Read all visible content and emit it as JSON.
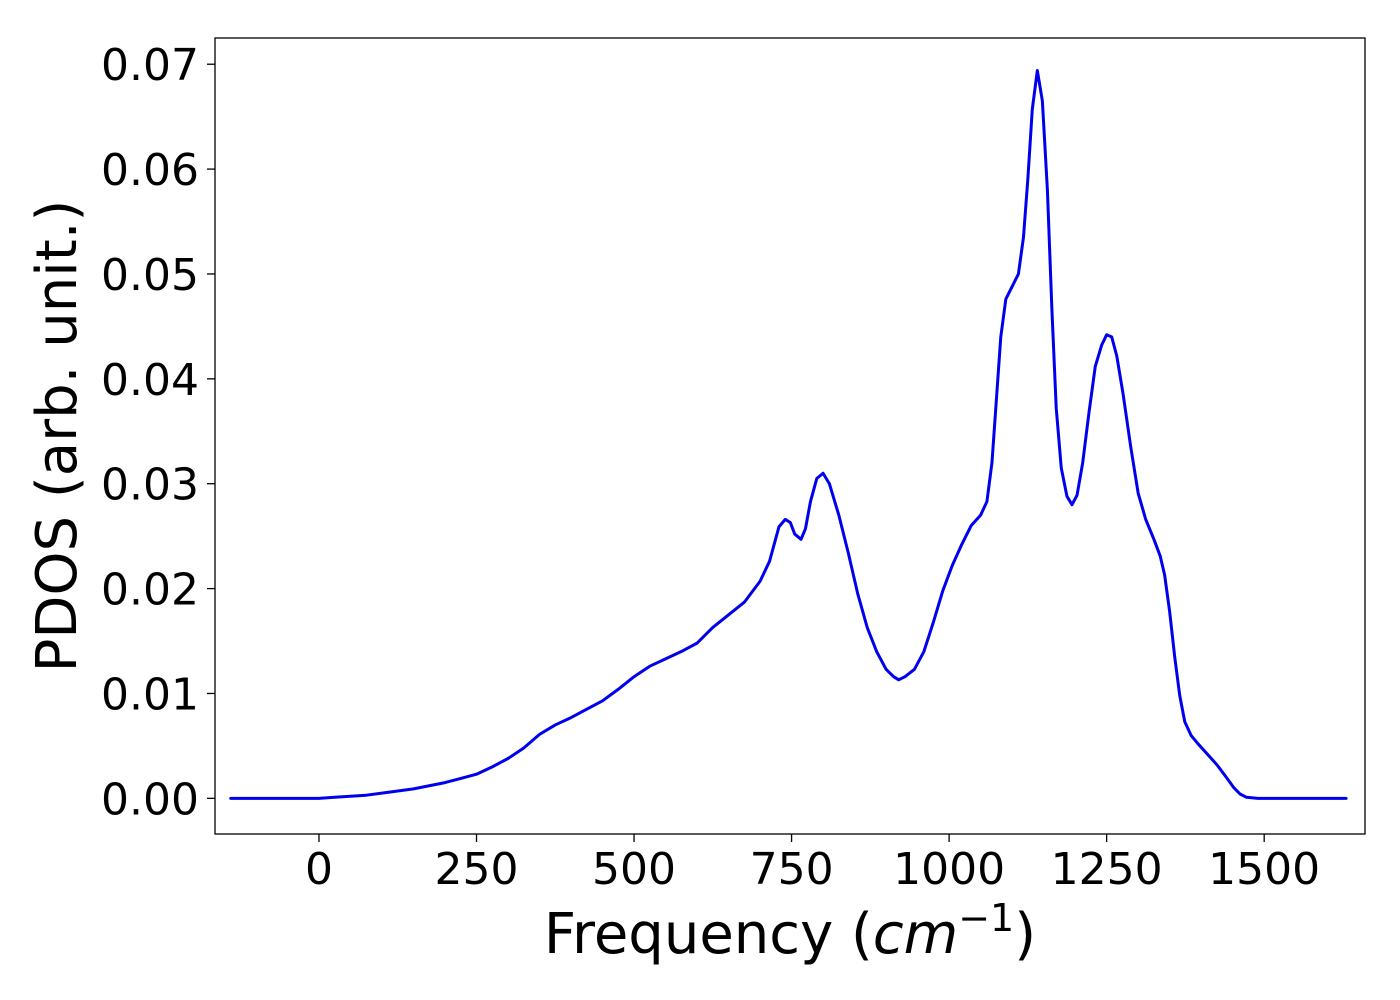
{
  "chart_data": {
    "type": "line",
    "xlabel_prefix": "Frequency (",
    "xlabel_unit_base": "cm",
    "xlabel_unit_exp": "−1",
    "xlabel_suffix": ")",
    "ylabel": "PDOS (arb. unit.)",
    "xlim": [
      -165,
      1660
    ],
    "ylim": [
      -0.0034,
      0.0725
    ],
    "x_ticks": [
      0,
      250,
      500,
      750,
      1000,
      1250,
      1500
    ],
    "x_tick_labels": [
      "0",
      "250",
      "500",
      "750",
      "1000",
      "1250",
      "1500"
    ],
    "y_ticks": [
      0,
      0.01,
      0.02,
      0.03,
      0.04,
      0.05,
      0.06,
      0.07
    ],
    "y_tick_labels": [
      "0.00",
      "0.01",
      "0.02",
      "0.03",
      "0.04",
      "0.05",
      "0.06",
      "0.07"
    ],
    "grid": false,
    "series": [
      {
        "color": "#0000ee",
        "points": [
          [
            -140,
            0
          ],
          [
            -100,
            0
          ],
          [
            -50,
            0
          ],
          [
            0,
            0
          ],
          [
            25,
            0.0001
          ],
          [
            50,
            0.0002
          ],
          [
            75,
            0.0003
          ],
          [
            100,
            0.0005
          ],
          [
            125,
            0.0007
          ],
          [
            150,
            0.0009
          ],
          [
            175,
            0.0012
          ],
          [
            200,
            0.0015
          ],
          [
            225,
            0.0019
          ],
          [
            250,
            0.0023
          ],
          [
            275,
            0.003
          ],
          [
            300,
            0.0038
          ],
          [
            325,
            0.0048
          ],
          [
            350,
            0.0061
          ],
          [
            375,
            0.007
          ],
          [
            400,
            0.0077
          ],
          [
            425,
            0.0085
          ],
          [
            450,
            0.0093
          ],
          [
            475,
            0.0104
          ],
          [
            500,
            0.0116
          ],
          [
            525,
            0.0126
          ],
          [
            550,
            0.0133
          ],
          [
            575,
            0.014
          ],
          [
            600,
            0.0148
          ],
          [
            625,
            0.0163
          ],
          [
            650,
            0.0175
          ],
          [
            675,
            0.0187
          ],
          [
            700,
            0.0207
          ],
          [
            715,
            0.0226
          ],
          [
            730,
            0.0259
          ],
          [
            740,
            0.0266
          ],
          [
            748,
            0.0263
          ],
          [
            755,
            0.0252
          ],
          [
            765,
            0.0247
          ],
          [
            772,
            0.0257
          ],
          [
            780,
            0.0283
          ],
          [
            790,
            0.0305
          ],
          [
            800,
            0.031
          ],
          [
            810,
            0.03
          ],
          [
            825,
            0.027
          ],
          [
            840,
            0.0234
          ],
          [
            855,
            0.0195
          ],
          [
            870,
            0.0163
          ],
          [
            885,
            0.014
          ],
          [
            900,
            0.0123
          ],
          [
            912,
            0.0116
          ],
          [
            920,
            0.0113
          ],
          [
            930,
            0.0116
          ],
          [
            945,
            0.0123
          ],
          [
            960,
            0.014
          ],
          [
            975,
            0.0168
          ],
          [
            990,
            0.0198
          ],
          [
            1005,
            0.0222
          ],
          [
            1020,
            0.0242
          ],
          [
            1035,
            0.026
          ],
          [
            1050,
            0.027
          ],
          [
            1060,
            0.0283
          ],
          [
            1068,
            0.032
          ],
          [
            1075,
            0.038
          ],
          [
            1082,
            0.044
          ],
          [
            1090,
            0.0476
          ],
          [
            1100,
            0.0488
          ],
          [
            1110,
            0.05
          ],
          [
            1118,
            0.0535
          ],
          [
            1125,
            0.0591
          ],
          [
            1132,
            0.0657
          ],
          [
            1140,
            0.0694
          ],
          [
            1148,
            0.0665
          ],
          [
            1156,
            0.058
          ],
          [
            1163,
            0.0468
          ],
          [
            1170,
            0.0372
          ],
          [
            1178,
            0.0315
          ],
          [
            1187,
            0.0288
          ],
          [
            1195,
            0.028
          ],
          [
            1203,
            0.0289
          ],
          [
            1212,
            0.032
          ],
          [
            1222,
            0.0368
          ],
          [
            1232,
            0.0412
          ],
          [
            1242,
            0.0432
          ],
          [
            1250,
            0.0442
          ],
          [
            1258,
            0.044
          ],
          [
            1266,
            0.0422
          ],
          [
            1276,
            0.0386
          ],
          [
            1288,
            0.0336
          ],
          [
            1300,
            0.0291
          ],
          [
            1312,
            0.0266
          ],
          [
            1325,
            0.0247
          ],
          [
            1335,
            0.0231
          ],
          [
            1342,
            0.0213
          ],
          [
            1350,
            0.0178
          ],
          [
            1358,
            0.0135
          ],
          [
            1366,
            0.0098
          ],
          [
            1374,
            0.0073
          ],
          [
            1384,
            0.006
          ],
          [
            1395,
            0.0052
          ],
          [
            1410,
            0.0042
          ],
          [
            1425,
            0.0032
          ],
          [
            1440,
            0.002
          ],
          [
            1452,
            0.001
          ],
          [
            1462,
            0.0004
          ],
          [
            1472,
            0.0001
          ],
          [
            1490,
            0
          ],
          [
            1525,
            0
          ],
          [
            1560,
            0
          ],
          [
            1600,
            0
          ],
          [
            1630,
            0
          ]
        ]
      }
    ]
  }
}
